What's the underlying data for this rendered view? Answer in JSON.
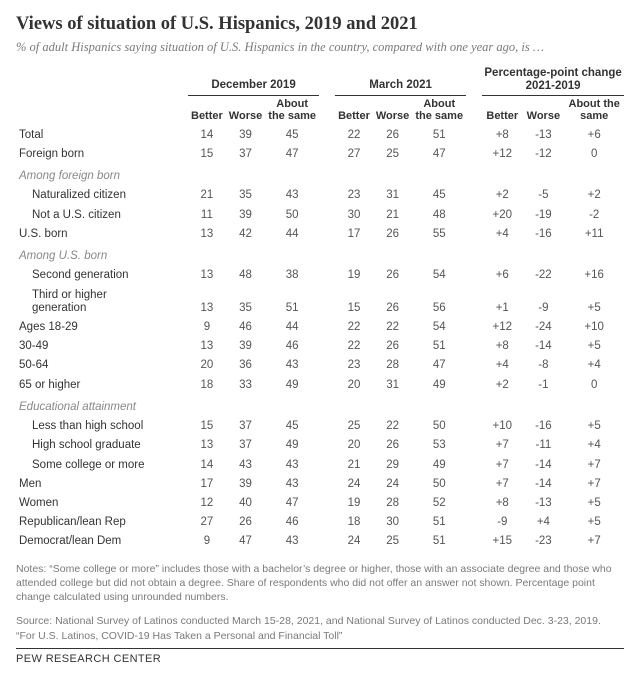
{
  "title": "Views of situation of U.S. Hispanics, 2019 and 2021",
  "subtitle": "% of adult Hispanics saying situation of U.S. Hispanics in the country, compared with one year ago, is …",
  "column_groups": {
    "g1": "December 2019",
    "g2": "March 2021",
    "g3": "Percentage-point change 2021-2019"
  },
  "column_heads": {
    "better": "Better",
    "worse": "Worse",
    "same": "About the same"
  },
  "sections": [
    {
      "type": "row",
      "label": "Total",
      "cells": [
        "14",
        "39",
        "45",
        "22",
        "26",
        "51",
        "+8",
        "-13",
        "+6"
      ]
    },
    {
      "type": "row",
      "label": "Foreign born",
      "cells": [
        "15",
        "37",
        "47",
        "27",
        "25",
        "47",
        "+12",
        "-12",
        "0"
      ]
    },
    {
      "type": "header",
      "label": "Among foreign born"
    },
    {
      "type": "row",
      "label": "Naturalized citizen",
      "indent": 1,
      "cells": [
        "21",
        "35",
        "43",
        "23",
        "31",
        "45",
        "+2",
        "-5",
        "+2"
      ]
    },
    {
      "type": "row",
      "label": "Not a U.S. citizen",
      "indent": 1,
      "cells": [
        "11",
        "39",
        "50",
        "30",
        "21",
        "48",
        "+20",
        "-19",
        "-2"
      ]
    },
    {
      "type": "row",
      "label": "U.S. born",
      "cells": [
        "13",
        "42",
        "44",
        "17",
        "26",
        "55",
        "+4",
        "-16",
        "+11"
      ]
    },
    {
      "type": "header",
      "label": "Among U.S. born"
    },
    {
      "type": "row",
      "label": "Second generation",
      "indent": 1,
      "cells": [
        "13",
        "48",
        "38",
        "19",
        "26",
        "54",
        "+6",
        "-22",
        "+16"
      ]
    },
    {
      "type": "row",
      "label": "Third or higher generation",
      "indent": 1,
      "wrap": true,
      "cells": [
        "13",
        "35",
        "51",
        "15",
        "26",
        "56",
        "+1",
        "-9",
        "+5"
      ]
    },
    {
      "type": "row",
      "label": "Ages 18-29",
      "cells": [
        "9",
        "46",
        "44",
        "22",
        "22",
        "54",
        "+12",
        "-24",
        "+10"
      ]
    },
    {
      "type": "row",
      "label": "30-49",
      "cells": [
        "13",
        "39",
        "46",
        "22",
        "26",
        "51",
        "+8",
        "-14",
        "+5"
      ]
    },
    {
      "type": "row",
      "label": "50-64",
      "cells": [
        "20",
        "36",
        "43",
        "23",
        "28",
        "47",
        "+4",
        "-8",
        "+4"
      ]
    },
    {
      "type": "row",
      "label": "65 or higher",
      "cells": [
        "18",
        "33",
        "49",
        "20",
        "31",
        "49",
        "+2",
        "-1",
        "0"
      ]
    },
    {
      "type": "header",
      "label": "Educational attainment"
    },
    {
      "type": "row",
      "label": "Less than high school",
      "indent": 1,
      "cells": [
        "15",
        "37",
        "45",
        "25",
        "22",
        "50",
        "+10",
        "-16",
        "+5"
      ]
    },
    {
      "type": "row",
      "label": "High school graduate",
      "indent": 1,
      "cells": [
        "13",
        "37",
        "49",
        "20",
        "26",
        "53",
        "+7",
        "-11",
        "+4"
      ]
    },
    {
      "type": "row",
      "label": "Some college or more",
      "indent": 1,
      "cells": [
        "14",
        "43",
        "43",
        "21",
        "29",
        "49",
        "+7",
        "-14",
        "+7"
      ]
    },
    {
      "type": "row",
      "label": "Men",
      "cells": [
        "17",
        "39",
        "43",
        "24",
        "24",
        "50",
        "+7",
        "-14",
        "+7"
      ]
    },
    {
      "type": "row",
      "label": "Women",
      "cells": [
        "12",
        "40",
        "47",
        "19",
        "28",
        "52",
        "+8",
        "-13",
        "+5"
      ]
    },
    {
      "type": "row",
      "label": "Republican/lean Rep",
      "cells": [
        "27",
        "26",
        "46",
        "18",
        "30",
        "51",
        "-9",
        "+4",
        "+5"
      ]
    },
    {
      "type": "row",
      "label": "Democrat/lean Dem",
      "cells": [
        "9",
        "47",
        "43",
        "24",
        "25",
        "51",
        "+15",
        "-23",
        "+7"
      ]
    }
  ],
  "notes": "Notes: “Some college or more” includes those with a bachelor’s degree or higher, those with an associate degree and those who attended college but did not obtain a degree. Share of respondents who did not offer an answer not shown. Percentage point change calculated using unrounded numbers.",
  "source": "Source: National Survey of Latinos conducted March 15-28, 2021, and National Survey of Latinos conducted Dec. 3-23, 2019.",
  "dek": "“For U.S. Latinos, COVID-19 Has Taken a Personal and Financial Toll”",
  "footer": "PEW RESEARCH CENTER"
}
